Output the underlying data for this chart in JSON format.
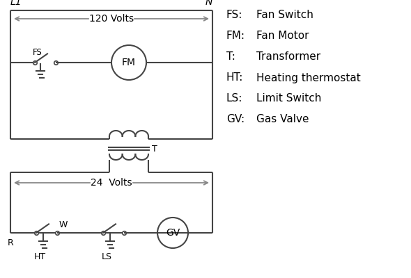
{
  "background_color": "#ffffff",
  "line_color": "#444444",
  "text_color": "#000000",
  "legend_items": [
    [
      "FS:",
      "Fan Switch"
    ],
    [
      "FM:",
      "Fan Motor"
    ],
    [
      "T:",
      "Transformer"
    ],
    [
      "HT:",
      "Heating thermostat"
    ],
    [
      "LS:",
      "Limit Switch"
    ],
    [
      "GV:",
      "Gas Valve"
    ]
  ],
  "L1_label": "L1",
  "N_label": "N",
  "volts120_label": "120 Volts",
  "volts24_label": "24  Volts",
  "T_label": "T",
  "FS_label": "FS",
  "FM_label": "FM",
  "R_label": "R",
  "W_label": "W",
  "HT_label": "HT",
  "LS_label": "LS",
  "GV_label": "GV",
  "arrow_color": "#888888"
}
